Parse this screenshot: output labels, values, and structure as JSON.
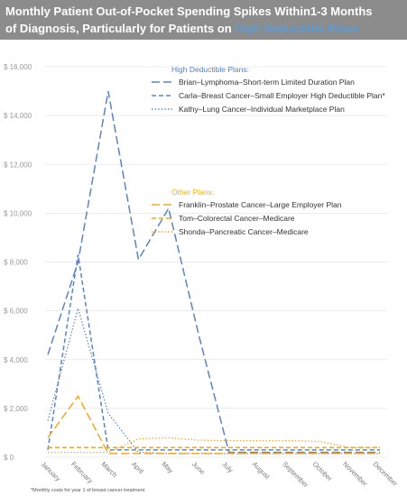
{
  "title": {
    "line1": "Monthly Patient Out-of-Pocket Spending Spikes Within1-3 Months",
    "line2_prefix": "of Diagnosis, Particularly for Patients on ",
    "line2_highlight": "High Deductible Plans"
  },
  "footnote": "*Monthly costs for year 1 of breast cancer treatment",
  "colors": {
    "blue": "#5b84c4",
    "orange": "#f5a623",
    "blue_heading": "#4f81c7",
    "orange_heading": "#f5b400",
    "grid": "#e6e6e6",
    "tick": "#999999"
  },
  "chart_data": {
    "type": "line",
    "categories": [
      "January",
      "February",
      "March",
      "April",
      "May",
      "June",
      "July",
      "August",
      "September",
      "October",
      "November",
      "December"
    ],
    "y_ticks": [
      "$ 0",
      "$ 2,000",
      "$ 4,000",
      "$ 6,000",
      "$ 8,000",
      "$ 10,000",
      "$ 12,000",
      "$ 14,000",
      "$ 16,000"
    ],
    "ylim": [
      0,
      16000
    ],
    "grid": true,
    "legend_groups": [
      {
        "heading": "High Deductible Plans:",
        "color_key": "blue_heading",
        "placement": "top-right"
      },
      {
        "heading": "Other Plans:",
        "color_key": "orange_heading",
        "placement": "middle-right"
      }
    ],
    "series": [
      {
        "name": "Brian–Lymphoma–Short-term Limited Duration Plan",
        "group": 0,
        "dash": "long",
        "color_key": "blue",
        "values": [
          4200,
          8000,
          15000,
          8100,
          10200,
          5000,
          200,
          200,
          200,
          200,
          200,
          200
        ]
      },
      {
        "name": "Carla–Breast Cancer–Small Employer High Deductible Plan*",
        "group": 0,
        "dash": "short",
        "color_key": "blue",
        "values": [
          300,
          8300,
          300,
          300,
          300,
          300,
          300,
          300,
          300,
          300,
          300,
          300
        ]
      },
      {
        "name": "Kathy–Lung Cancer–Individual Marketplace Plan",
        "group": 0,
        "dash": "dot",
        "color_key": "blue",
        "values": [
          1500,
          6100,
          1800,
          200,
          150,
          150,
          150,
          150,
          150,
          150,
          150,
          150
        ]
      },
      {
        "name": "Franklin–Prostate Cancer–Large Employer Plan",
        "group": 1,
        "dash": "long",
        "color_key": "orange",
        "values": [
          800,
          2500,
          150,
          150,
          150,
          150,
          150,
          150,
          150,
          150,
          150,
          150
        ]
      },
      {
        "name": "Tom–Colorectal Cancer–Medicare",
        "group": 1,
        "dash": "short",
        "color_key": "orange",
        "values": [
          400,
          400,
          400,
          400,
          400,
          400,
          400,
          400,
          400,
          400,
          400,
          400
        ]
      },
      {
        "name": "Shonda–Pancreatic Cancer–Medicare",
        "group": 1,
        "dash": "dot",
        "color_key": "orange",
        "values": [
          200,
          200,
          200,
          750,
          800,
          700,
          680,
          680,
          680,
          650,
          400,
          400
        ]
      }
    ]
  }
}
